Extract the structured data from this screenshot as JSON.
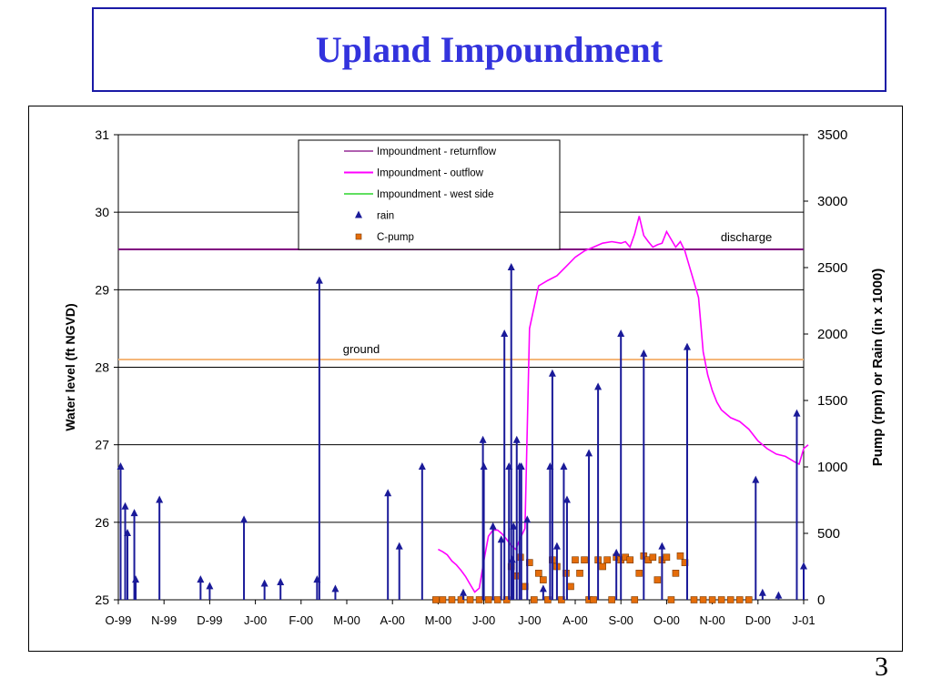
{
  "slide": {
    "title": "Upland Impoundment",
    "page_number": "3"
  },
  "chart_data": {
    "type": "line",
    "x_tick_labels": [
      "O-99",
      "N-99",
      "D-99",
      "J-00",
      "F-00",
      "M-00",
      "A-00",
      "M-00",
      "J-00",
      "J-00",
      "A-00",
      "S-00",
      "O-00",
      "N-00",
      "D-00",
      "J-01"
    ],
    "y_left": {
      "label": "Water level (ft NGVD)",
      "ticks": [
        25,
        26,
        27,
        28,
        29,
        30,
        31
      ],
      "range": [
        25,
        31
      ]
    },
    "y_right": {
      "label": "Pump (rpm) or Rain (in x 1000)",
      "ticks": [
        0,
        500,
        1000,
        1500,
        2000,
        2500,
        3000,
        3500
      ],
      "range": [
        0,
        3500
      ]
    },
    "grid": "horizontal",
    "legend_position": "top-center",
    "reference_lines": [
      {
        "label": "discharge",
        "value": 29.52,
        "color": "#800080"
      },
      {
        "label": "ground",
        "value": 28.1,
        "color": "#f5b77a"
      }
    ],
    "series": [
      {
        "name": "Impoundment - returnflow",
        "color": "#800080",
        "style": "line"
      },
      {
        "name": "Impoundment - outflow",
        "color": "#ff00ff",
        "style": "line",
        "x": [
          7.0,
          7.1,
          7.2,
          7.3,
          7.4,
          7.5,
          7.6,
          7.7,
          7.8,
          7.9,
          8.0,
          8.1,
          8.2,
          8.3,
          8.4,
          8.5,
          8.6,
          8.7,
          8.8,
          8.9,
          9.0,
          9.2,
          9.4,
          9.6,
          9.8,
          10.0,
          10.2,
          10.4,
          10.6,
          10.8,
          11.0,
          11.1,
          11.2,
          11.3,
          11.4,
          11.5,
          11.6,
          11.7,
          11.8,
          11.9,
          12.0,
          12.1,
          12.2,
          12.3,
          12.4,
          12.5,
          12.6,
          12.7,
          12.8,
          12.9,
          13.0,
          13.1,
          13.2,
          13.4,
          13.6,
          13.8,
          14.0,
          14.2,
          14.4,
          14.6,
          14.8,
          14.9,
          15.0,
          15.1
        ],
        "y": [
          25.65,
          25.62,
          25.58,
          25.5,
          25.45,
          25.38,
          25.3,
          25.2,
          25.1,
          25.15,
          25.5,
          25.82,
          25.9,
          25.9,
          25.85,
          25.78,
          25.7,
          25.65,
          25.8,
          25.92,
          28.5,
          29.05,
          29.12,
          29.18,
          29.3,
          29.42,
          29.5,
          29.55,
          29.6,
          29.62,
          29.6,
          29.62,
          29.55,
          29.72,
          29.95,
          29.7,
          29.62,
          29.55,
          29.58,
          29.6,
          29.75,
          29.65,
          29.55,
          29.62,
          29.5,
          29.3,
          29.1,
          28.9,
          28.2,
          27.9,
          27.7,
          27.55,
          27.45,
          27.35,
          27.3,
          27.2,
          27.05,
          26.95,
          26.88,
          26.85,
          26.78,
          26.75,
          26.95,
          27.0
        ]
      },
      {
        "name": "Impoundment - west side",
        "color": "#00cc00",
        "style": "line"
      },
      {
        "name": "rain",
        "color": "#1a1a99",
        "style": "stem-marker",
        "x": [
          0.05,
          0.15,
          0.2,
          0.35,
          0.38,
          0.9,
          1.8,
          2.0,
          2.75,
          3.2,
          3.55,
          4.35,
          4.4,
          4.75,
          5.9,
          6.15,
          6.65,
          7.55,
          7.98,
          8.0,
          8.2,
          8.38,
          8.45,
          8.55,
          8.6,
          8.62,
          8.65,
          8.72,
          8.78,
          8.82,
          8.95,
          9.3,
          9.45,
          9.5,
          9.6,
          9.75,
          9.82,
          10.3,
          10.5,
          10.9,
          11.0,
          11.5,
          11.9,
          12.45,
          13.95,
          14.1,
          14.45,
          14.85,
          15.0
        ],
        "y": [
          1000,
          700,
          500,
          650,
          150,
          750,
          150,
          100,
          600,
          120,
          130,
          150,
          2400,
          80,
          800,
          400,
          1000,
          50,
          1200,
          1000,
          550,
          450,
          2000,
          1000,
          2500,
          300,
          550,
          1200,
          1000,
          1000,
          600,
          80,
          1000,
          1700,
          400,
          1000,
          750,
          1100,
          1600,
          350,
          2000,
          1850,
          400,
          1900,
          900,
          50,
          30,
          1400,
          250
        ]
      },
      {
        "name": "C-pump",
        "color": "#e46c0a",
        "style": "marker",
        "x": [
          6.95,
          7.1,
          7.3,
          7.5,
          7.7,
          7.9,
          8.1,
          8.3,
          8.5,
          8.6,
          8.7,
          8.8,
          8.9,
          9.0,
          9.1,
          9.2,
          9.3,
          9.4,
          9.5,
          9.6,
          9.7,
          9.8,
          9.9,
          10.0,
          10.1,
          10.2,
          10.3,
          10.4,
          10.5,
          10.6,
          10.7,
          10.8,
          10.9,
          11.0,
          11.1,
          11.2,
          11.3,
          11.4,
          11.5,
          11.6,
          11.7,
          11.8,
          11.9,
          12.0,
          12.1,
          12.2,
          12.3,
          12.4,
          12.6,
          12.8,
          13.0,
          13.2,
          13.4,
          13.6,
          13.8
        ],
        "y": [
          0,
          0,
          0,
          0,
          0,
          0,
          0,
          0,
          0,
          250,
          180,
          320,
          100,
          280,
          0,
          200,
          150,
          0,
          300,
          250,
          0,
          200,
          100,
          300,
          200,
          300,
          0,
          0,
          300,
          250,
          300,
          0,
          320,
          300,
          320,
          300,
          0,
          200,
          330,
          300,
          320,
          150,
          300,
          320,
          0,
          200,
          330,
          280,
          0,
          0,
          0,
          0,
          0,
          0,
          0
        ]
      }
    ]
  }
}
